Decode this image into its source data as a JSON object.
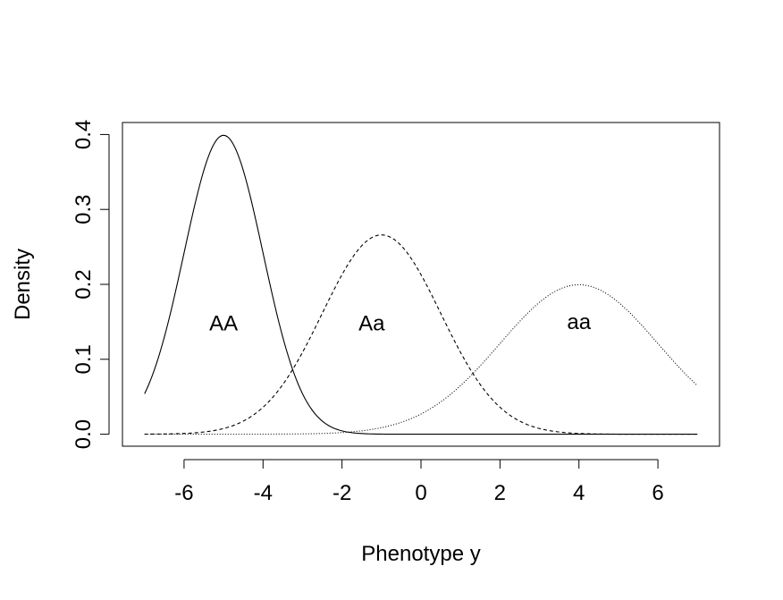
{
  "chart_data": {
    "type": "line",
    "title": "",
    "xlabel": "Phenotype y",
    "ylabel": "Density",
    "xlim": [
      -7.56,
      7.56
    ],
    "ylim": [
      -0.016,
      0.416
    ],
    "xticks": [
      -6,
      -4,
      -2,
      0,
      2,
      4,
      6
    ],
    "yticks": [
      0.0,
      0.1,
      0.2,
      0.3,
      0.4
    ],
    "xtick_labels": [
      "-6",
      "-4",
      "-2",
      "0",
      "2",
      "4",
      "6"
    ],
    "ytick_labels": [
      "0.0",
      "0.1",
      "0.2",
      "0.3",
      "0.4"
    ],
    "grid": false,
    "legend": "none",
    "x_range": [
      -7,
      7
    ],
    "series": [
      {
        "genotype": "AA",
        "mean": -5,
        "sd": 1,
        "line_style": "solid",
        "label_position": [
          -5,
          0.146
        ]
      },
      {
        "genotype": "Aa",
        "mean": -1,
        "sd": 1.5,
        "line_style": "dashed",
        "label_position": [
          -1.25,
          0.146
        ]
      },
      {
        "genotype": "aa",
        "mean": 4,
        "sd": 2,
        "line_style": "dotted",
        "label_position": [
          4,
          0.148
        ]
      }
    ],
    "annotations": [
      {
        "text": "AA",
        "x": -5,
        "y": 0.146
      },
      {
        "text": "Aa",
        "x": -1.25,
        "y": 0.146
      },
      {
        "text": "aa",
        "x": 4,
        "y": 0.148
      }
    ]
  }
}
